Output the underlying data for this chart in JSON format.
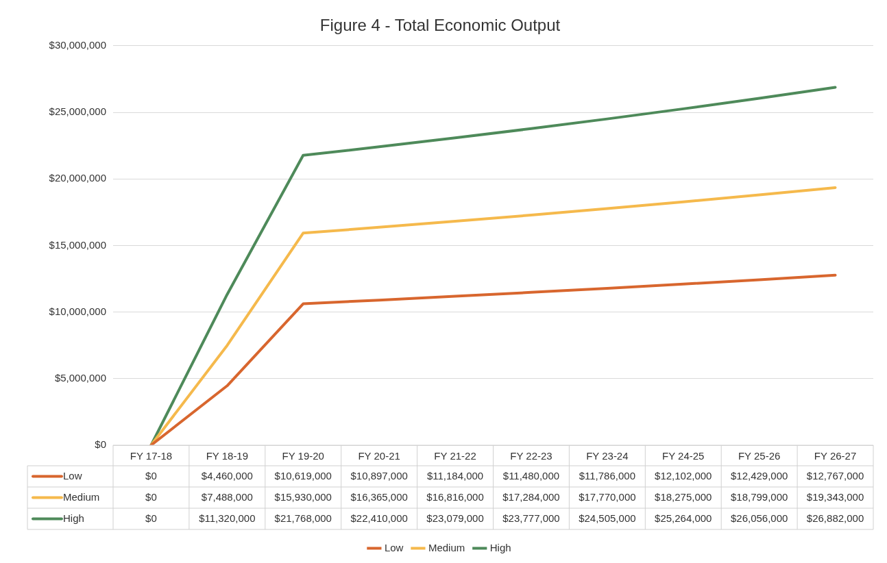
{
  "chart_data": {
    "type": "line",
    "title": "Figure 4 - Total Economic Output",
    "categories": [
      "FY 17-18",
      "FY 18-19",
      "FY 19-20",
      "FY 20-21",
      "FY 21-22",
      "FY 22-23",
      "FY 23-24",
      "FY 24-25",
      "FY 25-26",
      "FY 26-27"
    ],
    "series": [
      {
        "name": "Low",
        "color": "#d8662e",
        "values": [
          0,
          4460000,
          10619000,
          10897000,
          11184000,
          11480000,
          11786000,
          12102000,
          12429000,
          12767000
        ],
        "value_labels": [
          "$0",
          "$4,460,000",
          "$10,619,000",
          "$10,897,000",
          "$11,184,000",
          "$11,480,000",
          "$11,786,000",
          "$12,102,000",
          "$12,429,000",
          "$12,767,000"
        ]
      },
      {
        "name": "Medium",
        "color": "#f5b94c",
        "values": [
          0,
          7488000,
          15930000,
          16365000,
          16816000,
          17284000,
          17770000,
          18275000,
          18799000,
          19343000
        ],
        "value_labels": [
          "$0",
          "$7,488,000",
          "$15,930,000",
          "$16,365,000",
          "$16,816,000",
          "$17,284,000",
          "$17,770,000",
          "$18,275,000",
          "$18,799,000",
          "$19,343,000"
        ]
      },
      {
        "name": "High",
        "color": "#4e8a5a",
        "values": [
          0,
          11320000,
          21768000,
          22410000,
          23079000,
          23777000,
          24505000,
          25264000,
          26056000,
          26882000
        ],
        "value_labels": [
          "$0",
          "$11,320,000",
          "$21,768,000",
          "$22,410,000",
          "$23,079,000",
          "$23,777,000",
          "$24,505,000",
          "$25,264,000",
          "$26,056,000",
          "$26,882,000"
        ]
      }
    ],
    "ylim": [
      0,
      30000000
    ],
    "yticks": [
      {
        "value": 0,
        "label": "$0"
      },
      {
        "value": 5000000,
        "label": "$5,000,000"
      },
      {
        "value": 10000000,
        "label": "$10,000,000"
      },
      {
        "value": 15000000,
        "label": "$15,000,000"
      },
      {
        "value": 20000000,
        "label": "$20,000,000"
      },
      {
        "value": 25000000,
        "label": "$25,000,000"
      },
      {
        "value": 30000000,
        "label": "$30,000,000"
      }
    ],
    "grid": "y",
    "legend": "bottom",
    "marker": "none",
    "line_style": "solid"
  }
}
